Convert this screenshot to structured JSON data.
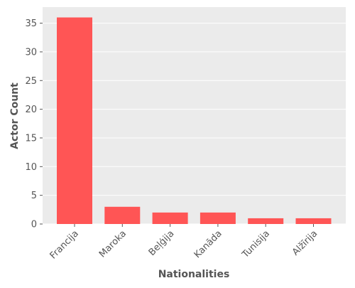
{
  "chart_data": {
    "type": "bar",
    "title": "",
    "xlabel": "Nationalities",
    "ylabel": "Actor Count",
    "categories": [
      "Francija",
      "Maroka",
      "Beļģija",
      "Kanāda",
      "Tunisija",
      "Alžīrija"
    ],
    "values": [
      36,
      3,
      2,
      2,
      1,
      1
    ],
    "ylim": [
      0,
      37.8
    ],
    "yticks": [
      0,
      5,
      10,
      15,
      20,
      25,
      30,
      35
    ],
    "grid": true,
    "bar_color": "#ff5555",
    "background_color": "#ebebeb",
    "grid_color": "#ffffff"
  }
}
